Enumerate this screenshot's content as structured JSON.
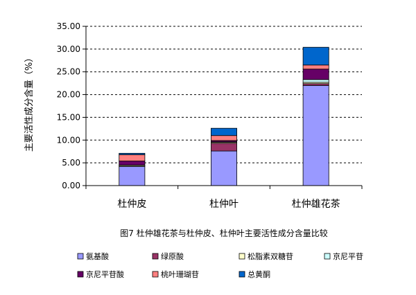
{
  "chart_data": {
    "type": "bar",
    "stacked": true,
    "title": "",
    "caption": "图7  杜仲雄花茶与杜仲皮、杜仲叶主要活性成分含量比较",
    "xlabel": "",
    "ylabel": "主要活性成分含量（%）",
    "ylim": [
      0,
      35
    ],
    "y_ticks": [
      "0.00",
      "5.00",
      "10.00",
      "15.00",
      "20.00",
      "25.00",
      "30.00",
      "35.00"
    ],
    "grid": true,
    "legend_position": "bottom",
    "categories": [
      "杜仲皮",
      "杜仲叶",
      "杜仲雄花茶"
    ],
    "series": [
      {
        "name": "氨基酸",
        "color": "#9999FF",
        "values": [
          4.2,
          7.6,
          22.0
        ]
      },
      {
        "name": "绿原酸",
        "color": "#993366",
        "values": [
          0.0,
          1.7,
          0.4
        ]
      },
      {
        "name": "松脂素双糖苷",
        "color": "#FFFFCC",
        "values": [
          0.2,
          0.2,
          0.3
        ]
      },
      {
        "name": "京尼平苷",
        "color": "#CCFFFF",
        "values": [
          0.1,
          0.1,
          0.6
        ]
      },
      {
        "name": "京尼平苷酸",
        "color": "#660066",
        "values": [
          0.9,
          0.3,
          2.3
        ]
      },
      {
        "name": "桃叶珊瑚苷",
        "color": "#FF8080",
        "values": [
          1.4,
          1.1,
          0.9
        ]
      },
      {
        "name": "总黄酮",
        "color": "#0066CC",
        "values": [
          0.3,
          1.6,
          3.9
        ]
      }
    ]
  }
}
